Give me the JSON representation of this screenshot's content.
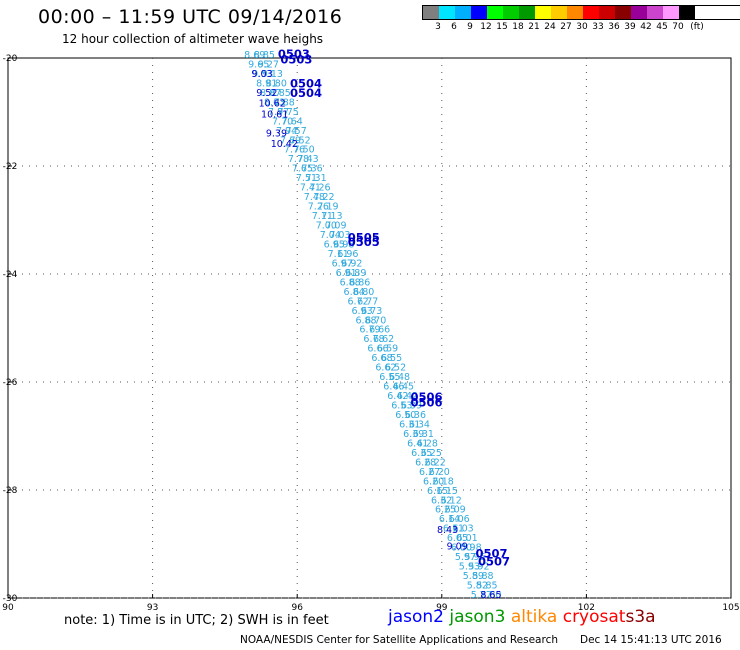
{
  "header": {
    "title": "00:00 – 11:59 UTC 09/14/2016",
    "subtitle": "12 hour collection of altimeter wave heighs"
  },
  "legend": {
    "unit": "(ft)",
    "colors": [
      "#7f7f7f",
      "#00e5ff",
      "#00b0ff",
      "#0000ff",
      "#00ff00",
      "#00cc00",
      "#009900",
      "#ffff00",
      "#ffcc00",
      "#ff8800",
      "#ff0000",
      "#cc0000",
      "#880000",
      "#990099",
      "#cc44cc",
      "#ff99ff",
      "#000000"
    ],
    "ticks": [
      "3",
      "6",
      "9",
      "12",
      "15",
      "18",
      "21",
      "24",
      "27",
      "30",
      "33",
      "36",
      "39",
      "42",
      "45",
      "70"
    ]
  },
  "axes": {
    "lon_ticks": [
      "90",
      "93",
      "96",
      "99",
      "102",
      "105"
    ],
    "lat_ticks": [
      "-20",
      "-22",
      "-24",
      "-26",
      "-28",
      "-30"
    ]
  },
  "tracks": {
    "labels": [
      {
        "text": "0503",
        "lon": 95.6,
        "lat": -20.0
      },
      {
        "text": "0503",
        "lon": 95.65,
        "lat": -20.1
      },
      {
        "text": "0504",
        "lon": 95.85,
        "lat": -20.55
      },
      {
        "text": "0504",
        "lon": 95.85,
        "lat": -20.72
      },
      {
        "text": "0505",
        "lon": 97.05,
        "lat": -23.4
      },
      {
        "text": "0505",
        "lon": 97.05,
        "lat": -23.48
      },
      {
        "text": "0506",
        "lon": 98.35,
        "lat": -26.35
      },
      {
        "text": "0506",
        "lon": 98.35,
        "lat": -26.45
      },
      {
        "text": "0507",
        "lon": 99.7,
        "lat": -29.25
      },
      {
        "text": "0507",
        "lon": 99.75,
        "lat": -29.4
      }
    ],
    "dark_points": [
      {
        "v": "9.03",
        "lon": 95.05,
        "lat": -20.35
      },
      {
        "v": "9.52",
        "lon": 95.15,
        "lat": -20.7
      },
      {
        "v": "10.62",
        "lon": 95.2,
        "lat": -20.9
      },
      {
        "v": "10.61",
        "lon": 95.25,
        "lat": -21.1
      },
      {
        "v": "9.39",
        "lon": 95.35,
        "lat": -21.45
      },
      {
        "v": "10.42",
        "lon": 95.45,
        "lat": -21.65
      },
      {
        "v": "8.43",
        "lon": 98.9,
        "lat": -28.8
      },
      {
        "v": "9.09",
        "lon": 99.1,
        "lat": -29.1
      },
      {
        "v": "8.65",
        "lon": 99.8,
        "lat": -30.0
      }
    ],
    "light_series": [
      {
        "lon0": 94.9,
        "lat0": -20.0,
        "lon1": 99.6,
        "lat1": -30.0,
        "values": [
          "8.69",
          "9.65",
          "9.53",
          "8.91",
          "8.87",
          "8.03",
          "7.97",
          "7.70",
          "7.94",
          "7.69",
          "7.76",
          "7.78",
          "7.65",
          "7.51",
          "7.41",
          "7.48",
          "7.26",
          "7.11",
          "7.00",
          "7.04",
          "6.95",
          "7.11",
          "6.97",
          "6.91",
          "6.88",
          "6.84",
          "6.72",
          "6.93",
          "6.88",
          "6.79",
          "6.78",
          "6.66",
          "6.68",
          "6.62",
          "6.55",
          "6.46",
          "6.42",
          "6.53",
          "6.50",
          "6.31",
          "6.39",
          "6.41",
          "6.35",
          "6.28",
          "6.27",
          "6.20",
          "6.15",
          "6.32",
          "6.25",
          "6.14",
          "6.11",
          "6.05",
          "6.00",
          "5.97",
          "5.93",
          "5.89",
          "5.82",
          "5.77"
        ]
      },
      {
        "lon0": 95.1,
        "lat0": -20.0,
        "lon1": 99.8,
        "lat1": -30.0,
        "values": [
          "8.85",
          "9.27",
          "9.13",
          "8.80",
          "8.85",
          "7.88",
          "7.75",
          "7.64",
          "7.57",
          "7.52",
          "7.50",
          "7.43",
          "7.36",
          "7.31",
          "7.26",
          "7.22",
          "7.19",
          "7.13",
          "7.09",
          "7.03",
          "6.98",
          "6.96",
          "6.92",
          "6.89",
          "6.86",
          "6.80",
          "6.77",
          "6.73",
          "6.70",
          "6.66",
          "6.62",
          "6.59",
          "6.55",
          "6.52",
          "6.48",
          "6.45",
          "6.42",
          "6.39",
          "6.36",
          "6.34",
          "6.31",
          "6.28",
          "6.25",
          "6.22",
          "6.20",
          "6.18",
          "6.15",
          "6.12",
          "6.09",
          "6.06",
          "6.03",
          "6.01",
          "5.98",
          "5.95",
          "5.92",
          "5.88",
          "5.85",
          "5.80"
        ]
      }
    ]
  },
  "footer": {
    "note": "note: 1) Time is in UTC; 2) SWH is in feet",
    "sat1": "jason2",
    "sat2": "jason3",
    "sat3": "altika",
    "sat4": "cryosat",
    "sat5": "s3a",
    "credit": "NOAA/NESDIS Center for Satellite Applications and Research",
    "timestamp": "Dec 14 15:41:13 UTC 2016"
  },
  "colors": {
    "track_dark": "#0000cc",
    "track_light": "#33aadd",
    "jason2": "#0000ff",
    "jason3": "#009900",
    "altika": "#ff8800",
    "cryosat": "#ff0000",
    "s3a": "#880000"
  }
}
